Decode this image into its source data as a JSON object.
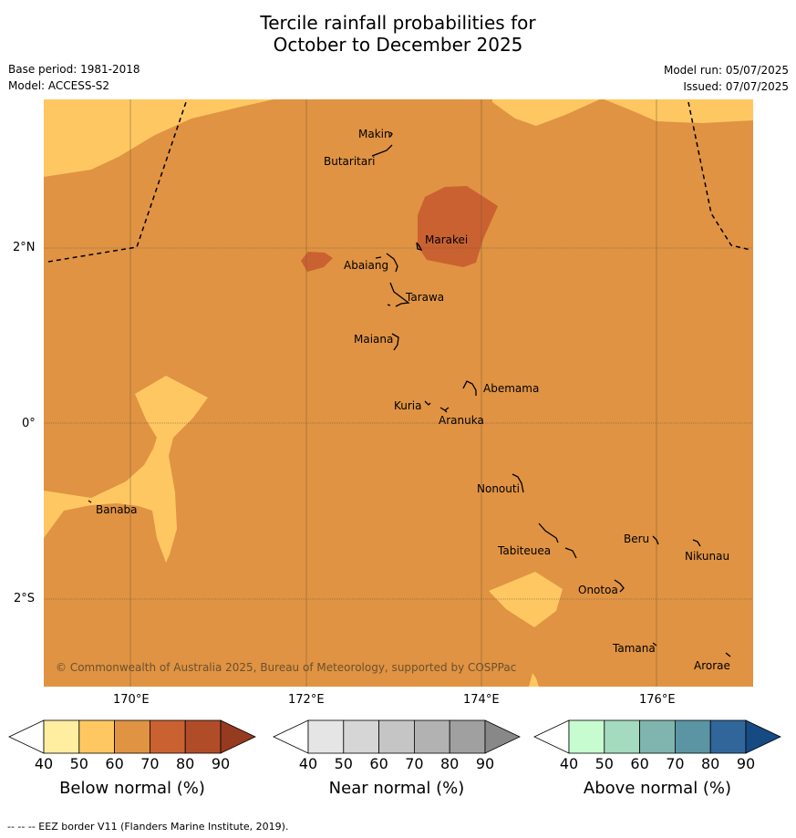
{
  "title": {
    "line1": "Tercile rainfall probabilities for",
    "line2": "October to December 2025"
  },
  "meta": {
    "base_period": "Base period: 1981-2018",
    "model": "Model: ACCESS-S2",
    "model_run": "Model run: 05/07/2025",
    "issued": "Issued: 07/07/2025"
  },
  "axes": {
    "lon_labels": [
      "170°E",
      "172°E",
      "174°E",
      "176°E"
    ],
    "lat_labels": [
      "2°N",
      "0°",
      "2°S"
    ]
  },
  "colors": {
    "below": [
      "#ffffff",
      "#ffeda0",
      "#fec762",
      "#e09342",
      "#ca6131",
      "#b04d28",
      "#963a20"
    ],
    "near": [
      "#ffffff",
      "#e5e5e5",
      "#d6d6d6",
      "#c5c5c5",
      "#b2b2b2",
      "#a0a0a0",
      "#888888"
    ],
    "above": [
      "#ffffff",
      "#c7fcd1",
      "#a4dabe",
      "#7fb5ae",
      "#5b94a2",
      "#31669a",
      "#164a83"
    ]
  },
  "places": [
    {
      "name": "Makin"
    },
    {
      "name": "Butaritari"
    },
    {
      "name": "Marakei"
    },
    {
      "name": "Abaiang"
    },
    {
      "name": "Tarawa"
    },
    {
      "name": "Maiana"
    },
    {
      "name": "Abemama"
    },
    {
      "name": "Kuria"
    },
    {
      "name": "Aranuka"
    },
    {
      "name": "Banaba"
    },
    {
      "name": "Nonouti"
    },
    {
      "name": "Beru"
    },
    {
      "name": "Tabiteuea"
    },
    {
      "name": "Nikunau"
    },
    {
      "name": "Onotoa"
    },
    {
      "name": "Tamana"
    },
    {
      "name": "Arorae"
    }
  ],
  "copyright": "© Commonwealth of Australia 2025, Bureau of Meteorology, supported by COSPPac",
  "colorbars": [
    {
      "label": "Below normal (%)",
      "ticks": [
        "40",
        "50",
        "60",
        "70",
        "80",
        "90"
      ]
    },
    {
      "label": "Near normal (%)",
      "ticks": [
        "40",
        "50",
        "60",
        "70",
        "80",
        "90"
      ]
    },
    {
      "label": "Above normal (%)",
      "ticks": [
        "40",
        "50",
        "60",
        "70",
        "80",
        "90"
      ]
    }
  ],
  "footer": "--  --  -- EEZ border V11 (Flanders Marine Institute, 2019)."
}
